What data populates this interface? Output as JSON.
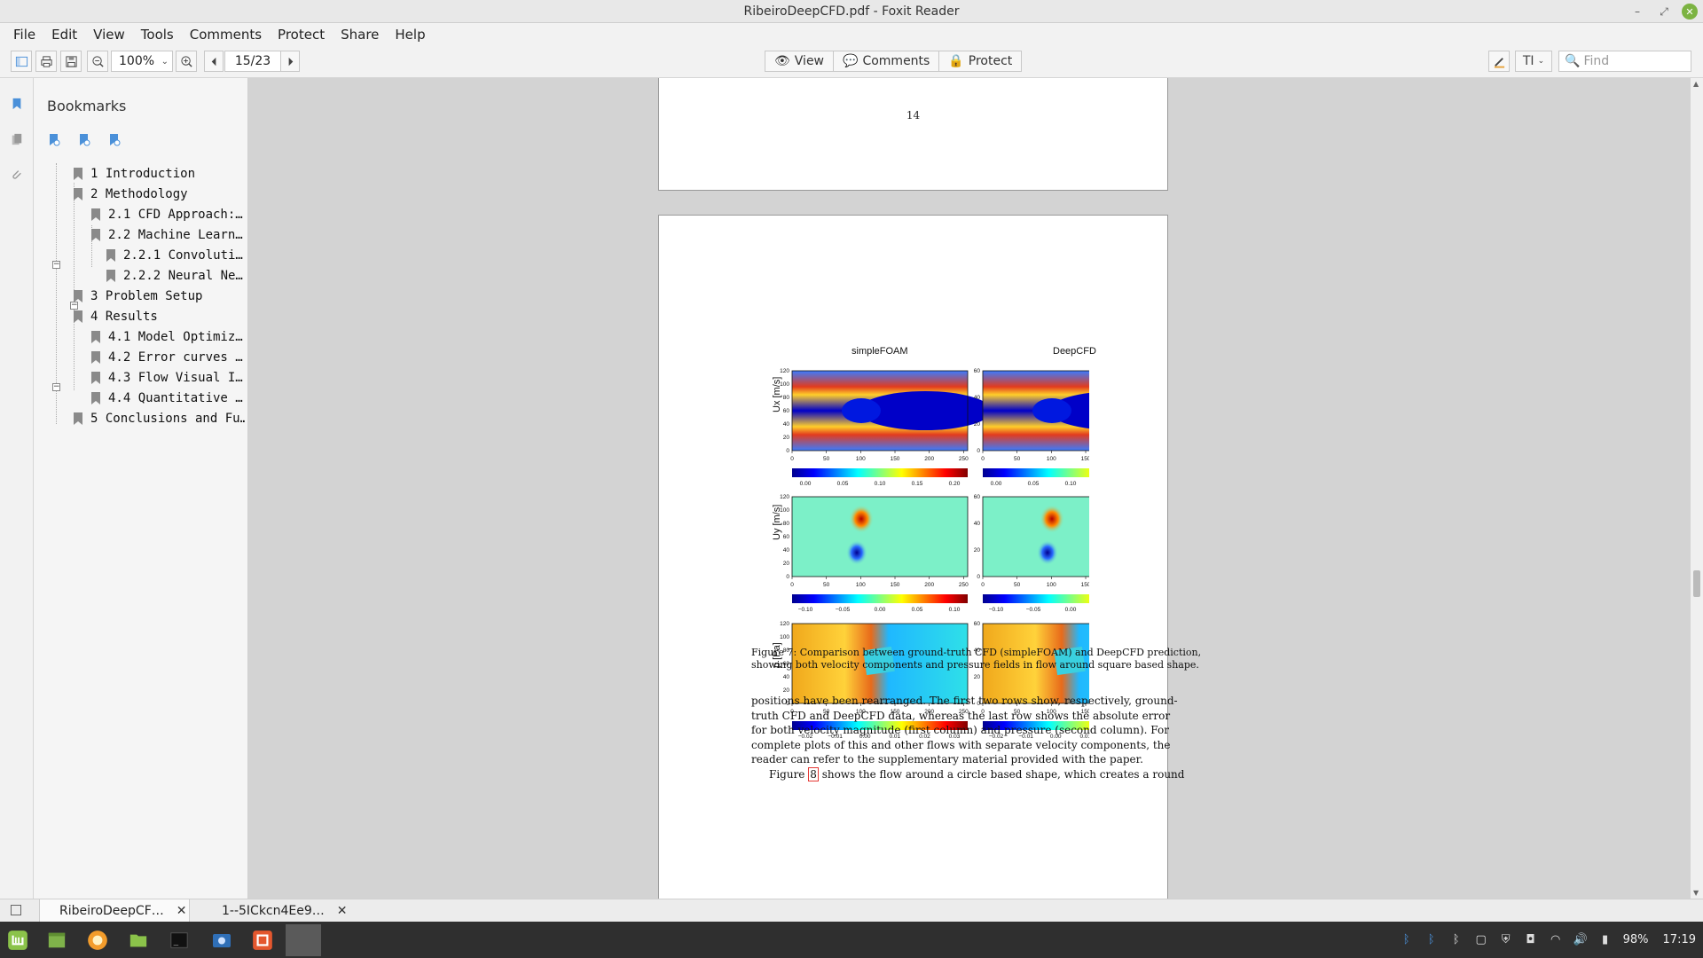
{
  "window": {
    "title": "RibeiroDeepCFD.pdf - Foxit Reader"
  },
  "menu": [
    "File",
    "Edit",
    "View",
    "Tools",
    "Comments",
    "Protect",
    "Share",
    "Help"
  ],
  "toolbar": {
    "zoom": "100%",
    "page": "15/23",
    "view_label": "View",
    "comments_label": "Comments",
    "protect_label": "Protect",
    "find_placeholder": "Find"
  },
  "bookmarks": {
    "title": "Bookmarks",
    "items": [
      {
        "label": "1 Introduction",
        "level": 0
      },
      {
        "label": "2 Methodology",
        "level": 0,
        "expanded": true
      },
      {
        "label": "2.1 CFD Approach:…",
        "level": 1
      },
      {
        "label": "2.2 Machine Learn…",
        "level": 1,
        "expanded": true
      },
      {
        "label": "2.2.1 Convoluti…",
        "level": 2
      },
      {
        "label": "2.2.2 Neural Ne…",
        "level": 2
      },
      {
        "label": "3 Problem Setup",
        "level": 0
      },
      {
        "label": "4 Results",
        "level": 0,
        "expanded": true
      },
      {
        "label": "4.1 Model Optimiz…",
        "level": 1
      },
      {
        "label": "4.2 Error curves …",
        "level": 1
      },
      {
        "label": "4.3 Flow Visual I…",
        "level": 1
      },
      {
        "label": "4.4 Quantitative …",
        "level": 1
      },
      {
        "label": "5 Conclusions and Fu…",
        "level": 0
      }
    ]
  },
  "document": {
    "prev_page_number": "14",
    "figure": {
      "col_titles": [
        "simpleFOAM",
        "DeepCFD"
      ],
      "row_labels": [
        "Ux [m/s]",
        "Uy [m/s]",
        "p [Pa]"
      ],
      "left_yticks": [
        "120",
        "100",
        "80",
        "60",
        "40",
        "20",
        "0"
      ],
      "right_yticks": [
        "60",
        "40",
        "20",
        "0"
      ],
      "xticks": [
        "0",
        "50",
        "100",
        "150",
        "200",
        "250"
      ],
      "colorbar_ticks": [
        [
          "0.00",
          "0.05",
          "0.10",
          "0.15",
          "0.20"
        ],
        [
          "−0.10",
          "−0.05",
          "0.00",
          "0.05",
          "0.10"
        ],
        [
          "−0.02",
          "−0.01",
          "0.00",
          "0.01",
          "0.02",
          "0.03"
        ]
      ]
    },
    "caption_line1": "Figure 7: Comparison between ground-truth CFD (simpleFOAM) and DeepCFD prediction,",
    "caption_line2": "showing both velocity components and pressure fields in flow around square based shape.",
    "body_lines": [
      "positions have been rearranged. The first two rows show, respectively, ground-",
      "truth CFD and DeepCFD data, whereas the last row shows the absolute error",
      "for both velocity magnitude (first column) and pressure (second column). For",
      "complete plots of this and other flows with separate velocity components, the",
      "reader can refer to the supplementary material provided with the paper."
    ],
    "last_line_pre": "Figure ",
    "last_line_ref": "8",
    "last_line_post": " shows the flow around a circle based shape, which creates a round"
  },
  "tabs": [
    "RibeiroDeepCF…",
    "1--5ICkcn4Ee9…"
  ],
  "tray": {
    "battery": "98%",
    "time": "17:19"
  },
  "colors": {
    "accent": "#4a90d9",
    "mint_green": "#8bc34a",
    "panel_bg": "#f5f5f5"
  }
}
